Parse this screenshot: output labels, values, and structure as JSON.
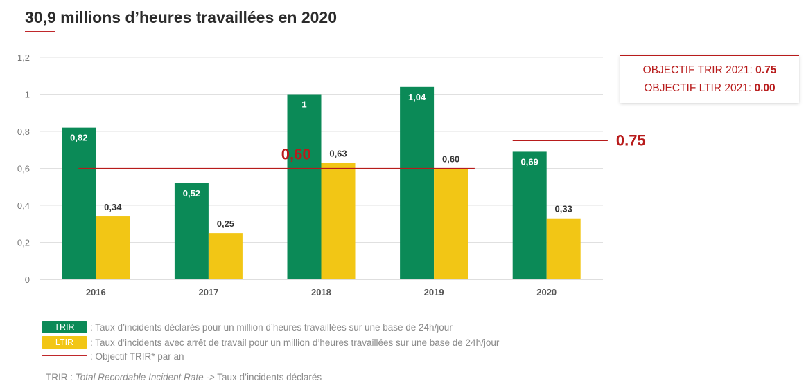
{
  "title": "30,9 millions d’heures travaillées en 2020",
  "chart_data": {
    "type": "bar",
    "categories": [
      "2016",
      "2017",
      "2018",
      "2019",
      "2020"
    ],
    "series": [
      {
        "name": "TRIR",
        "color": "#0b8a57",
        "values": [
          0.82,
          0.52,
          1,
          1.04,
          0.69
        ],
        "labels": [
          "0,82",
          "0,52",
          "1",
          "1,04",
          "0,69"
        ]
      },
      {
        "name": "LTIR",
        "color": "#f2c615",
        "values": [
          0.34,
          0.25,
          0.63,
          0.6,
          0.33
        ],
        "labels": [
          "0,34",
          "0,25",
          "0,63",
          "0,60",
          "0,33"
        ]
      }
    ],
    "ylim": [
      0,
      1.2
    ],
    "yticks": [
      0,
      0.2,
      0.4,
      0.6,
      0.8,
      1,
      1.2
    ],
    "ytick_labels": [
      "0",
      "0,2",
      "0,4",
      "0,6",
      "0,8",
      "1",
      "1,2"
    ],
    "reference_lines": [
      {
        "value": 0.6,
        "label": "0,60",
        "from_category": "2016",
        "to_category": "2019",
        "color": "#b81b1b"
      },
      {
        "value": 0.75,
        "label": "0.75",
        "from_category": "2020",
        "to_category": "2020",
        "color": "#b81b1b"
      }
    ],
    "grid": true
  },
  "objectives": {
    "trir_label": "OBJECTIF TRIR 2021: ",
    "trir_value": "0.75",
    "ltir_label": "OBJECTIF LTIR 2021: ",
    "ltir_value": "0.00"
  },
  "legend": [
    {
      "swatch": "TRIR",
      "text": ": Taux d’incidents déclarés pour un million d’heures travaillées sur une base de 24h/jour"
    },
    {
      "swatch": "LTIR",
      "text": ": Taux d’incidents avec arrêt de travail pour un million d’heures travaillées sur une base de 24h/jour"
    },
    {
      "swatch": "",
      "text": ": Objectif TRIR* par an"
    }
  ],
  "footnote": {
    "prefix": "TRIR : ",
    "italic": "Total Recordable Incident Rate",
    "suffix": " -> Taux d’incidents déclarés"
  }
}
